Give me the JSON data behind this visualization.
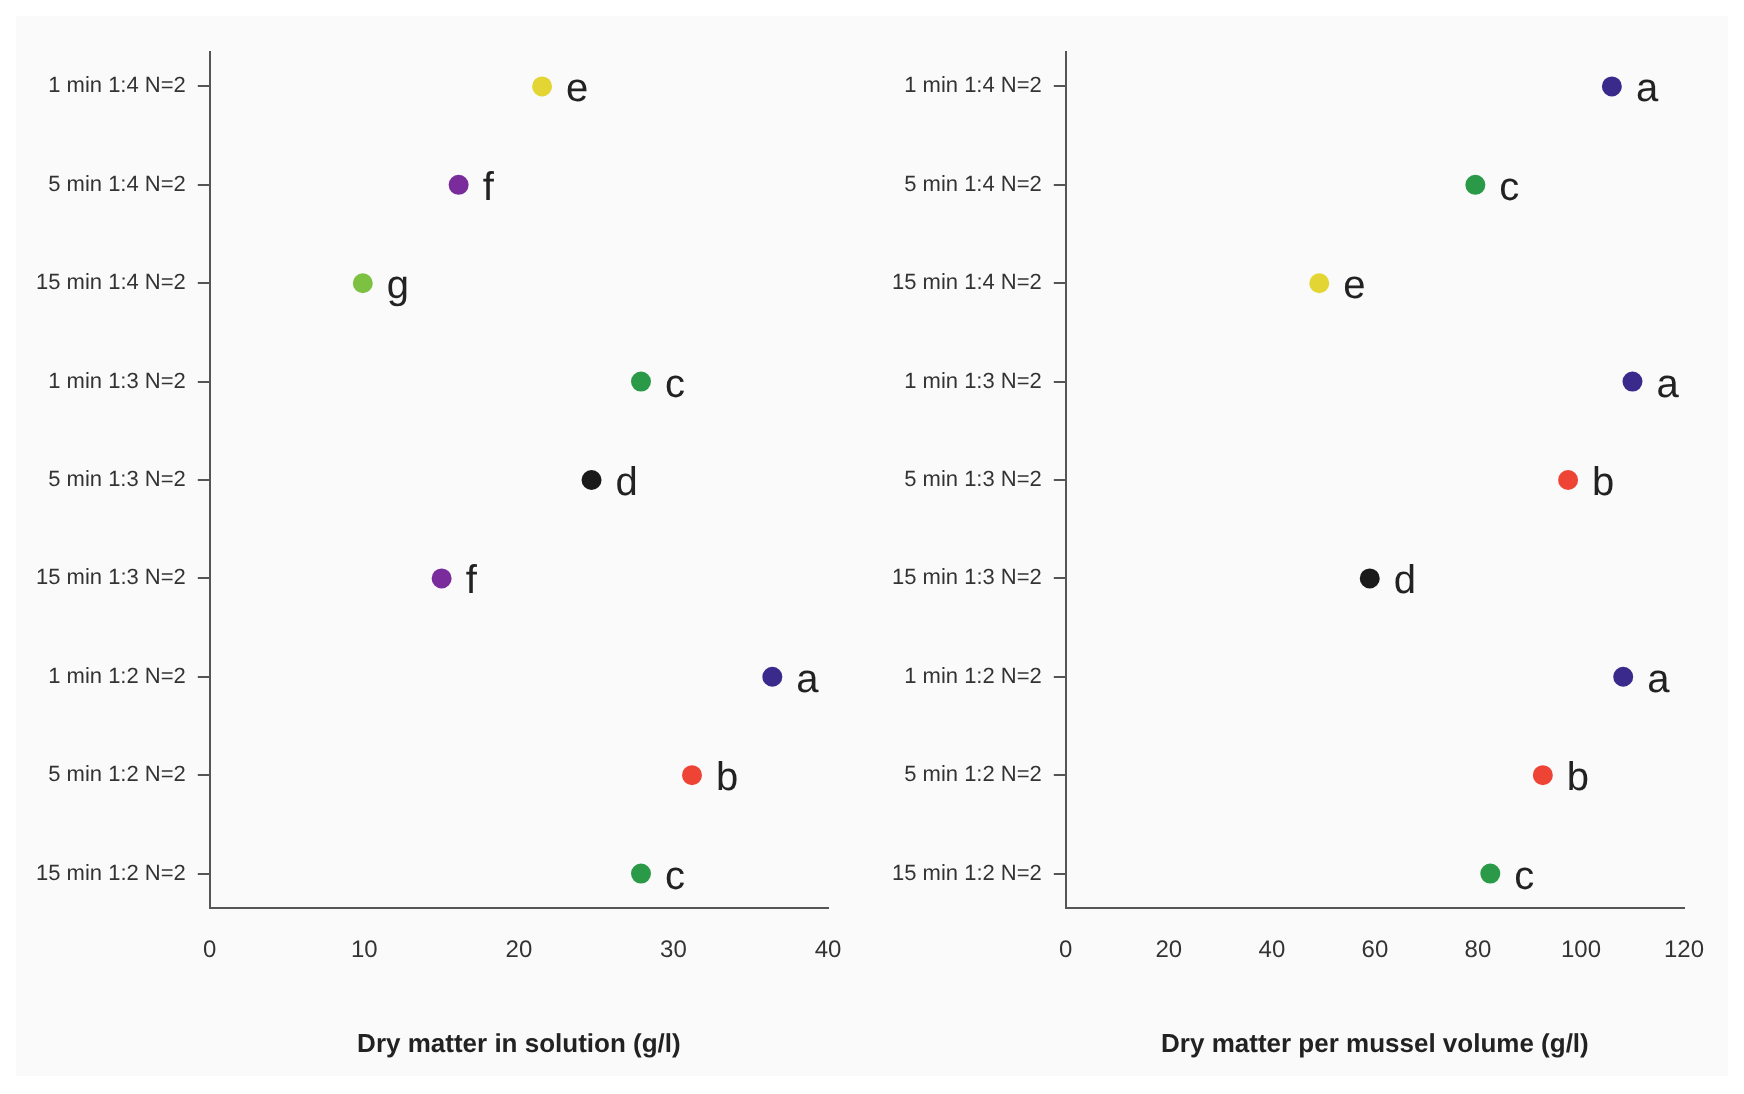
{
  "chart_data": [
    {
      "type": "scatter",
      "orientation": "horizontal",
      "xlabel": "Dry matter in solution (g/l)",
      "categories": [
        "1 min 1:4 N=2",
        "5 min 1:4 N=2",
        "15 min 1:4 N=2",
        "1 min 1:3 N=2",
        "5 min 1:3 N=2",
        "15 min 1:3 N=2",
        "1 min 1:2 N=2",
        "5 min 1:2 N=2",
        "15 min 1:2 N=2"
      ],
      "values": [
        21.5,
        16.1,
        9.9,
        27.9,
        24.7,
        15.0,
        36.4,
        31.2,
        27.9
      ],
      "colors": [
        "#e3d534",
        "#7a2c9c",
        "#7dc142",
        "#2a9a48",
        "#1a1a1a",
        "#7a2c9c",
        "#3a2a8c",
        "#ee4436",
        "#2a9a48"
      ],
      "xlim": [
        0,
        40
      ],
      "xticks": [
        0,
        10,
        20,
        30,
        40
      ],
      "grid": false,
      "marker": "circle",
      "annotations": [
        {
          "text": "e",
          "x": 21.5,
          "y": "1 min 1:4 N=2"
        },
        {
          "text": "f",
          "x": 16.1,
          "y": "5 min 1:4 N=2"
        },
        {
          "text": "g",
          "x": 9.9,
          "y": "15 min 1:4 N=2"
        },
        {
          "text": "c",
          "x": 27.9,
          "y": "1 min 1:3 N=2"
        },
        {
          "text": "d",
          "x": 24.7,
          "y": "5 min 1:3 N=2"
        },
        {
          "text": "f",
          "x": 15.0,
          "y": "15 min 1:3 N=2"
        },
        {
          "text": "a",
          "x": 36.4,
          "y": "1 min 1:2 N=2"
        },
        {
          "text": "b",
          "x": 31.2,
          "y": "5 min 1:2 N=2"
        },
        {
          "text": "c",
          "x": 27.9,
          "y": "15 min 1:2 N=2"
        }
      ]
    },
    {
      "type": "scatter",
      "orientation": "horizontal",
      "xlabel": "Dry matter per mussel volume (g/l)",
      "categories": [
        "1 min 1:4 N=2",
        "5 min 1:4 N=2",
        "15 min 1:4 N=2",
        "1 min 1:3 N=2",
        "5 min 1:3 N=2",
        "15 min 1:3 N=2",
        "1 min 1:2 N=2",
        "5 min 1:2 N=2",
        "15 min 1:2 N=2"
      ],
      "values": [
        106,
        79.5,
        49.2,
        110,
        97.5,
        59.0,
        108.2,
        92.6,
        82.4
      ],
      "colors": [
        "#3a2a8c",
        "#2a9a48",
        "#e3d534",
        "#3a2a8c",
        "#ee4436",
        "#1a1a1a",
        "#3a2a8c",
        "#ee4436",
        "#2a9a48"
      ],
      "xlim": [
        0,
        120
      ],
      "xticks": [
        0,
        20,
        40,
        60,
        80,
        100,
        120
      ],
      "grid": false,
      "marker": "circle",
      "annotations": [
        {
          "text": "a",
          "x": 106,
          "y": "1 min 1:4 N=2"
        },
        {
          "text": "c",
          "x": 79.5,
          "y": "5 min 1:4 N=2"
        },
        {
          "text": "e",
          "x": 49.2,
          "y": "15 min 1:4 N=2"
        },
        {
          "text": "a",
          "x": 110,
          "y": "1 min 1:3 N=2"
        },
        {
          "text": "b",
          "x": 97.5,
          "y": "5 min 1:3 N=2"
        },
        {
          "text": "d",
          "x": 59.0,
          "y": "15 min 1:3 N=2"
        },
        {
          "text": "a",
          "x": 108.2,
          "y": "1 min 1:2 N=2"
        },
        {
          "text": "b",
          "x": 92.6,
          "y": "5 min 1:2 N=2"
        },
        {
          "text": "c",
          "x": 82.4,
          "y": "15 min 1:2 N=2"
        }
      ]
    }
  ]
}
